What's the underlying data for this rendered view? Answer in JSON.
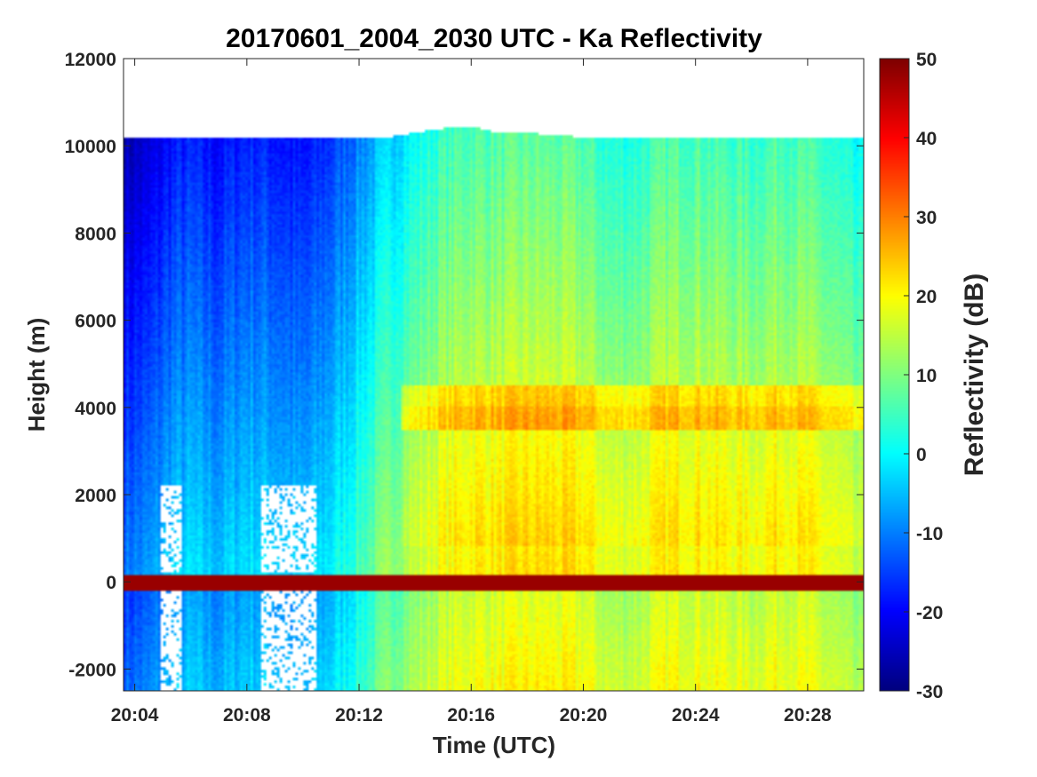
{
  "chart_data": {
    "type": "heatmap",
    "title": "20170601_2004_2030 UTC - Ka Reflectivity",
    "xlabel": "Time (UTC)",
    "ylabel": "Height (m)",
    "colorbar_label": "Reflectivity (dB)",
    "x_tick_labels": [
      "20:04",
      "20:08",
      "20:12",
      "20:16",
      "20:20",
      "20:24",
      "20:28"
    ],
    "x_ticks_min": [
      4,
      8,
      12,
      16,
      20,
      24,
      28
    ],
    "xlim_min": [
      3.6,
      30.0
    ],
    "y_ticks": [
      -2000,
      0,
      2000,
      4000,
      6000,
      8000,
      10000,
      12000
    ],
    "ylim": [
      -2500,
      12000
    ],
    "colorbar_ticks": [
      -30,
      -20,
      -10,
      0,
      10,
      20,
      30,
      40,
      50
    ],
    "clim": [
      -30,
      50
    ],
    "colormap": "jet",
    "data_top_height": 10200,
    "surface_return_height": 0,
    "melting_layer_height": 4000,
    "time_profile": [
      {
        "t": 3.6,
        "z": -12,
        "top": 10200,
        "gap": false
      },
      {
        "t": 4.5,
        "z": -10,
        "top": 10200,
        "gap": false
      },
      {
        "t": 5.3,
        "z": -5,
        "top": 10200,
        "gap": true
      },
      {
        "t": 6.0,
        "z": -4,
        "top": 10200,
        "gap": false
      },
      {
        "t": 7.0,
        "z": -6,
        "top": 10200,
        "gap": false
      },
      {
        "t": 8.0,
        "z": -3,
        "top": 10200,
        "gap": false
      },
      {
        "t": 9.0,
        "z": -4,
        "top": 10200,
        "gap": true
      },
      {
        "t": 10.0,
        "z": -6,
        "top": 10200,
        "gap": true
      },
      {
        "t": 11.0,
        "z": -2,
        "top": 10200,
        "gap": false
      },
      {
        "t": 12.0,
        "z": 4,
        "top": 10200,
        "gap": false
      },
      {
        "t": 13.0,
        "z": 10,
        "top": 10200,
        "gap": false
      },
      {
        "t": 14.0,
        "z": 14,
        "top": 10300,
        "gap": false
      },
      {
        "t": 15.0,
        "z": 18,
        "top": 10400,
        "gap": false
      },
      {
        "t": 16.0,
        "z": 20,
        "top": 10450,
        "gap": false
      },
      {
        "t": 17.0,
        "z": 20,
        "top": 10300,
        "gap": false
      },
      {
        "t": 18.0,
        "z": 21,
        "top": 10300,
        "gap": false
      },
      {
        "t": 19.0,
        "z": 21,
        "top": 10250,
        "gap": false
      },
      {
        "t": 20.0,
        "z": 20,
        "top": 10200,
        "gap": false
      },
      {
        "t": 21.0,
        "z": 16,
        "top": 10200,
        "gap": false
      },
      {
        "t": 22.0,
        "z": 17,
        "top": 10200,
        "gap": false
      },
      {
        "t": 23.0,
        "z": 20,
        "top": 10200,
        "gap": false
      },
      {
        "t": 24.0,
        "z": 20,
        "top": 10200,
        "gap": false
      },
      {
        "t": 25.0,
        "z": 19,
        "top": 10200,
        "gap": false
      },
      {
        "t": 26.0,
        "z": 18,
        "top": 10200,
        "gap": false
      },
      {
        "t": 27.0,
        "z": 20,
        "top": 10200,
        "gap": false
      },
      {
        "t": 28.0,
        "z": 19,
        "top": 10200,
        "gap": false
      },
      {
        "t": 29.0,
        "z": 16,
        "top": 10200,
        "gap": false
      },
      {
        "t": 30.0,
        "z": 12,
        "top": 10200,
        "gap": false
      }
    ]
  }
}
